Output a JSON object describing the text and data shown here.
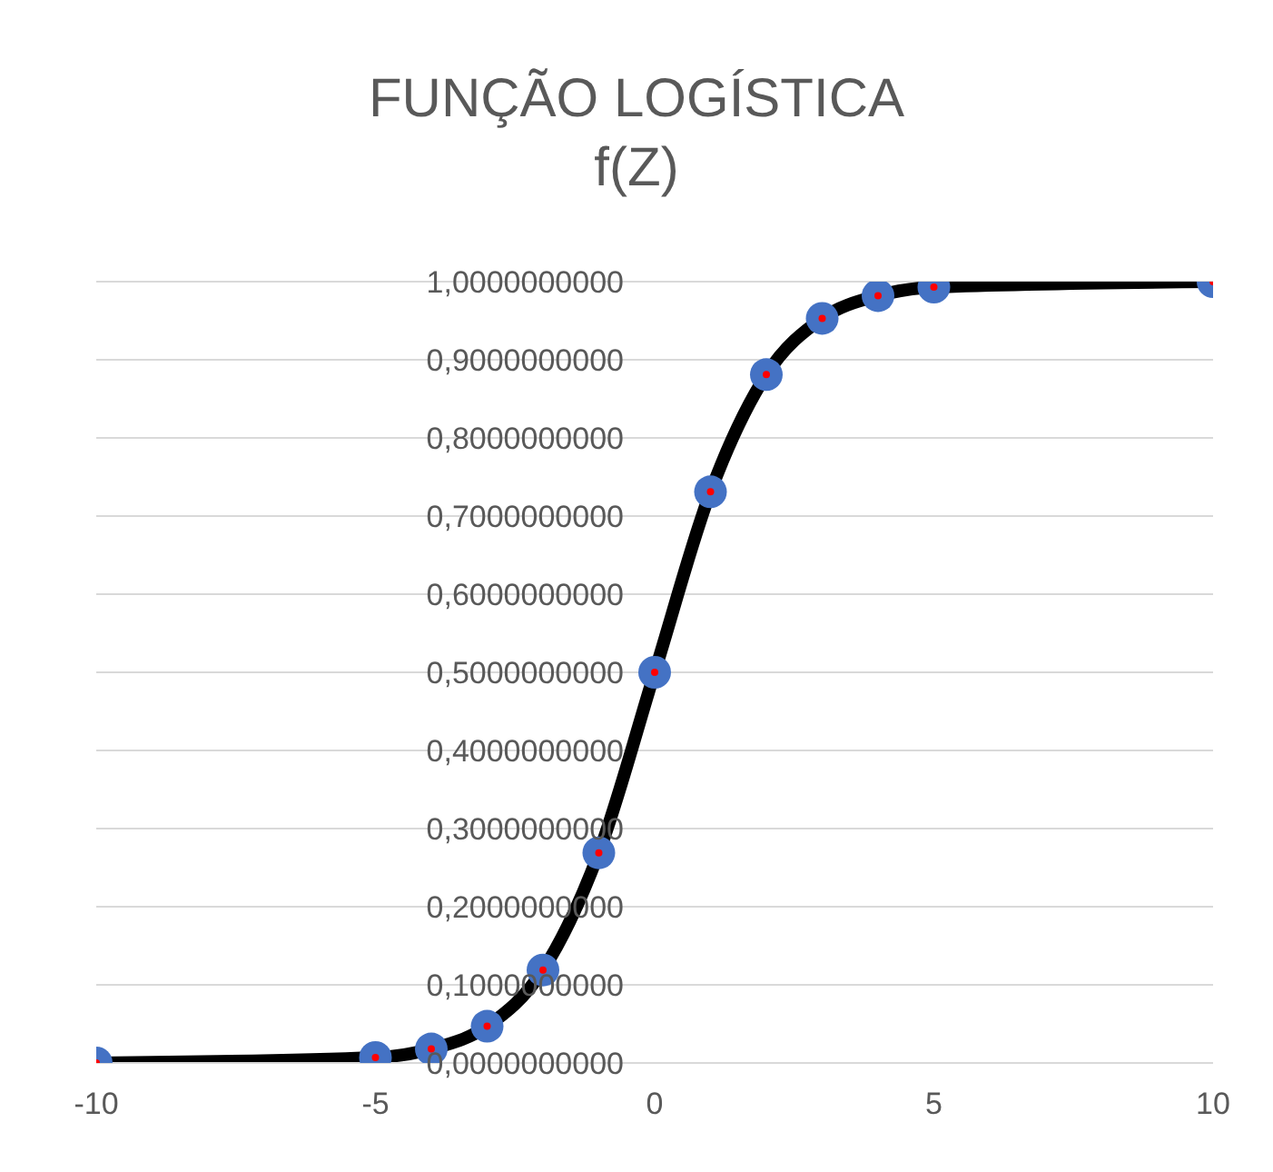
{
  "chart_data": {
    "type": "line",
    "title": "FUNÇÃO LOGÍSTICA",
    "subtitle": "f(Z)",
    "x": [
      -10,
      -5,
      -4,
      -3,
      -2,
      -1,
      0,
      1,
      2,
      3,
      4,
      5,
      10
    ],
    "series": [
      {
        "color": "#4472c4",
        "values": [
          0.0,
          0.007,
          0.018,
          0.047,
          0.119,
          0.269,
          0.5,
          0.731,
          0.881,
          0.953,
          0.982,
          0.993,
          1.0
        ]
      }
    ],
    "xlim": [
      -10,
      10
    ],
    "xticks": [
      -10,
      -5,
      0,
      5,
      10
    ],
    "ylim": [
      0,
      1
    ],
    "yticks": [
      {
        "value": 0,
        "label": "0,0000000000"
      },
      {
        "value": 0.1,
        "label": "0,1000000000"
      },
      {
        "value": 0.2,
        "label": "0,2000000000"
      },
      {
        "value": 0.3,
        "label": "0,3000000000"
      },
      {
        "value": 0.4,
        "label": "0,4000000000"
      },
      {
        "value": 0.5,
        "label": "0,5000000000"
      },
      {
        "value": 0.6,
        "label": "0,6000000000"
      },
      {
        "value": 0.7,
        "label": "0,7000000000"
      },
      {
        "value": 0.8,
        "label": "0,8000000000"
      },
      {
        "value": 0.9,
        "label": "0,9000000000"
      },
      {
        "value": 1,
        "label": "1,0000000000"
      }
    ],
    "grid": "y",
    "marker": "circle",
    "line_style": "solid",
    "legend": false
  }
}
